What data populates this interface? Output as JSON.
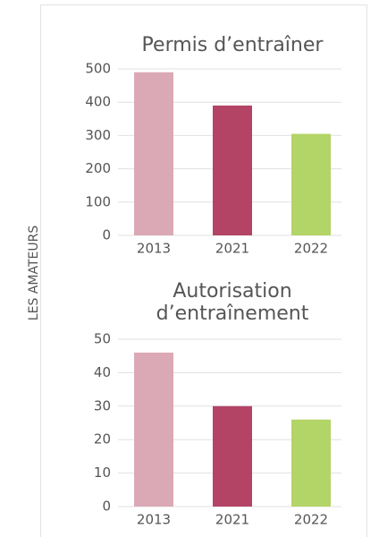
{
  "side_label": "LES AMATEURS",
  "chart_data": [
    {
      "type": "bar",
      "title": "Permis d’entraîner",
      "categories": [
        "2013",
        "2021",
        "2022"
      ],
      "values": [
        490,
        390,
        305
      ],
      "colors": [
        "#dba9b5",
        "#b34466",
        "#b3d466"
      ],
      "ylim": [
        0,
        500
      ],
      "yticks": [
        0,
        100,
        200,
        300,
        400,
        500
      ],
      "grid": true
    },
    {
      "type": "bar",
      "title": "Autorisation d’entraînement",
      "categories": [
        "2013",
        "2021",
        "2022"
      ],
      "values": [
        46,
        30,
        26
      ],
      "colors": [
        "#dba9b5",
        "#b34466",
        "#b3d466"
      ],
      "ylim": [
        0,
        50
      ],
      "yticks": [
        0,
        10,
        20,
        30,
        40,
        50
      ],
      "grid": true
    }
  ]
}
